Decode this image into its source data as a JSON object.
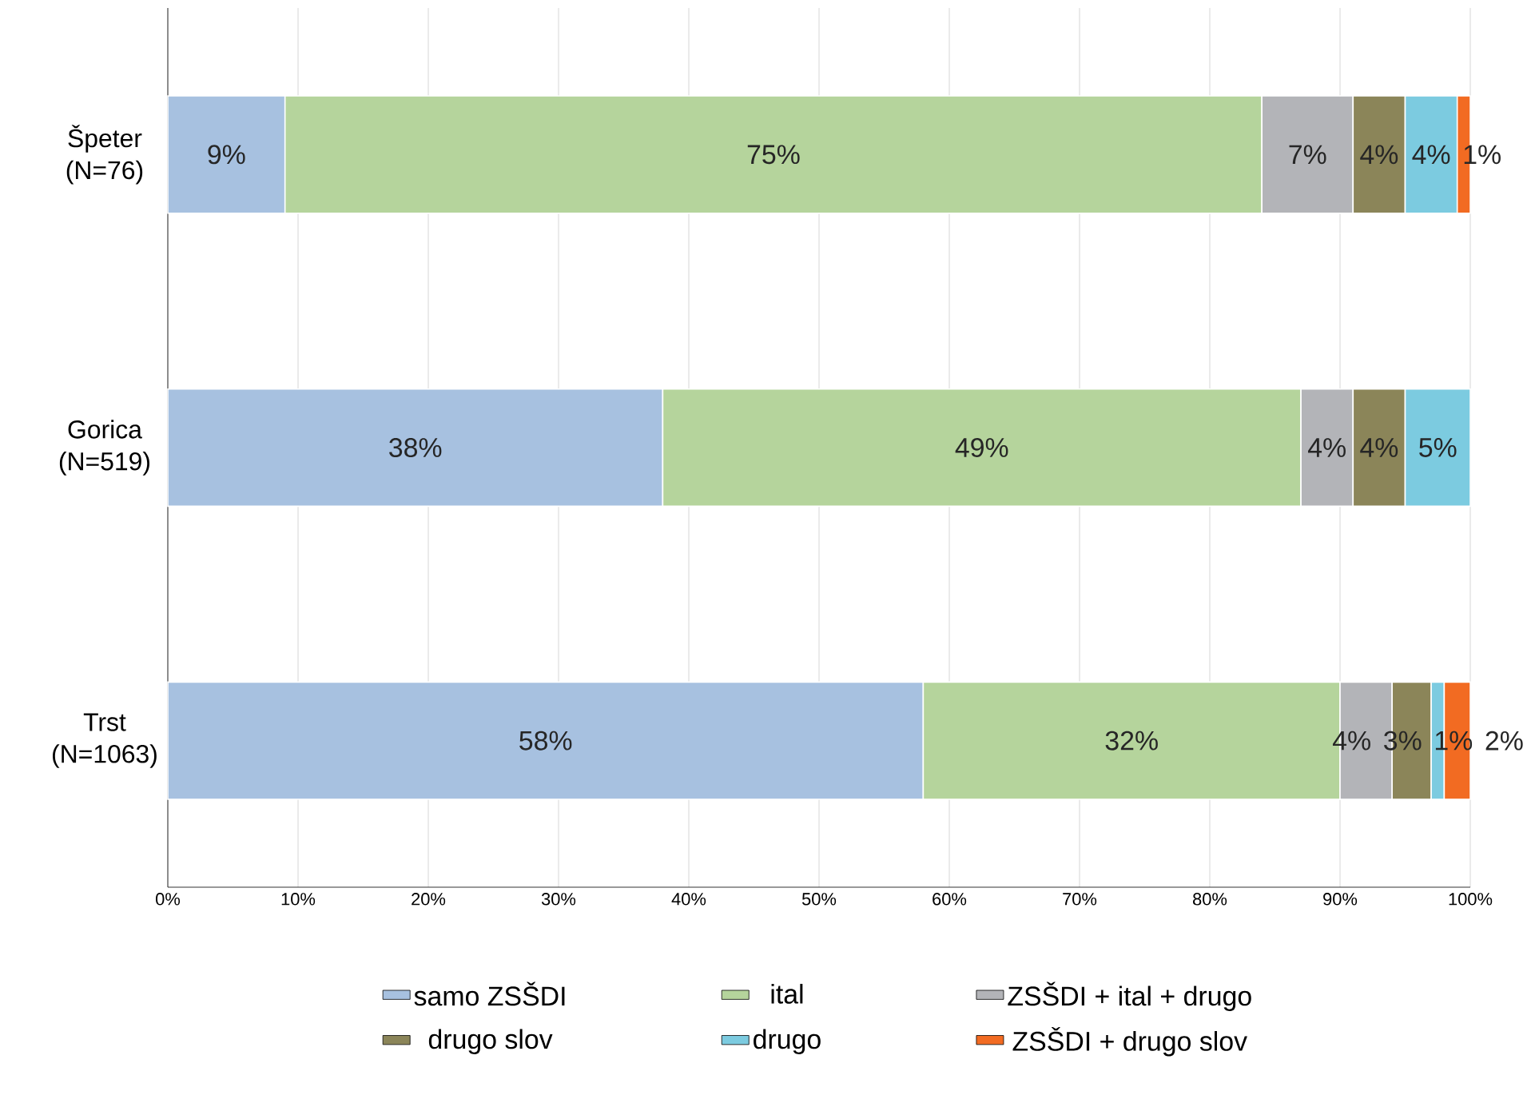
{
  "chart_data": {
    "type": "bar",
    "orientation": "horizontal",
    "stacked": true,
    "categories": [
      "Špeter (N=76)",
      "Gorica (N=519)",
      "Trst (N=1063)"
    ],
    "series": [
      {
        "name": "samo ZSŠDI",
        "color": "#a7c1e0",
        "values": [
          9,
          38,
          58
        ],
        "value_labels": [
          "9%",
          "38%",
          "58%"
        ]
      },
      {
        "name": "ital",
        "color": "#b5d49c",
        "values": [
          75,
          49,
          32
        ],
        "value_labels": [
          "75%",
          "49%",
          "32%"
        ]
      },
      {
        "name": "ZSŠDI + ital + drugo",
        "color": "#b3b4b8",
        "values": [
          7,
          4,
          4
        ],
        "value_labels": [
          "7%",
          "4%",
          "4%"
        ]
      },
      {
        "name": "drugo slov",
        "color": "#8b8559",
        "values": [
          4,
          4,
          3
        ],
        "value_labels": [
          "4%",
          "4%",
          "3%"
        ]
      },
      {
        "name": "drugo",
        "color": "#7ccbe0",
        "values": [
          4,
          5,
          1
        ],
        "value_labels": [
          "4%",
          "5%",
          "1%"
        ]
      },
      {
        "name": "ZSŠDI + drugo slov",
        "color": "#f26b22",
        "values": [
          1,
          null,
          2
        ],
        "value_labels": [
          "1%",
          null,
          "2%"
        ]
      }
    ],
    "xlim": [
      0,
      100
    ],
    "xticks": [
      {
        "value": 0,
        "label": "0%"
      },
      {
        "value": 10,
        "label": "10%"
      },
      {
        "value": 20,
        "label": "20%"
      },
      {
        "value": 30,
        "label": "30%"
      },
      {
        "value": 40,
        "label": "40%"
      },
      {
        "value": 50,
        "label": "50%"
      },
      {
        "value": 60,
        "label": "60%"
      },
      {
        "value": 70,
        "label": "70%"
      },
      {
        "value": 80,
        "label": "80%"
      },
      {
        "value": 90,
        "label": "90%"
      },
      {
        "value": 100,
        "label": "100%"
      }
    ],
    "grid": "x",
    "legend": "bottom"
  }
}
